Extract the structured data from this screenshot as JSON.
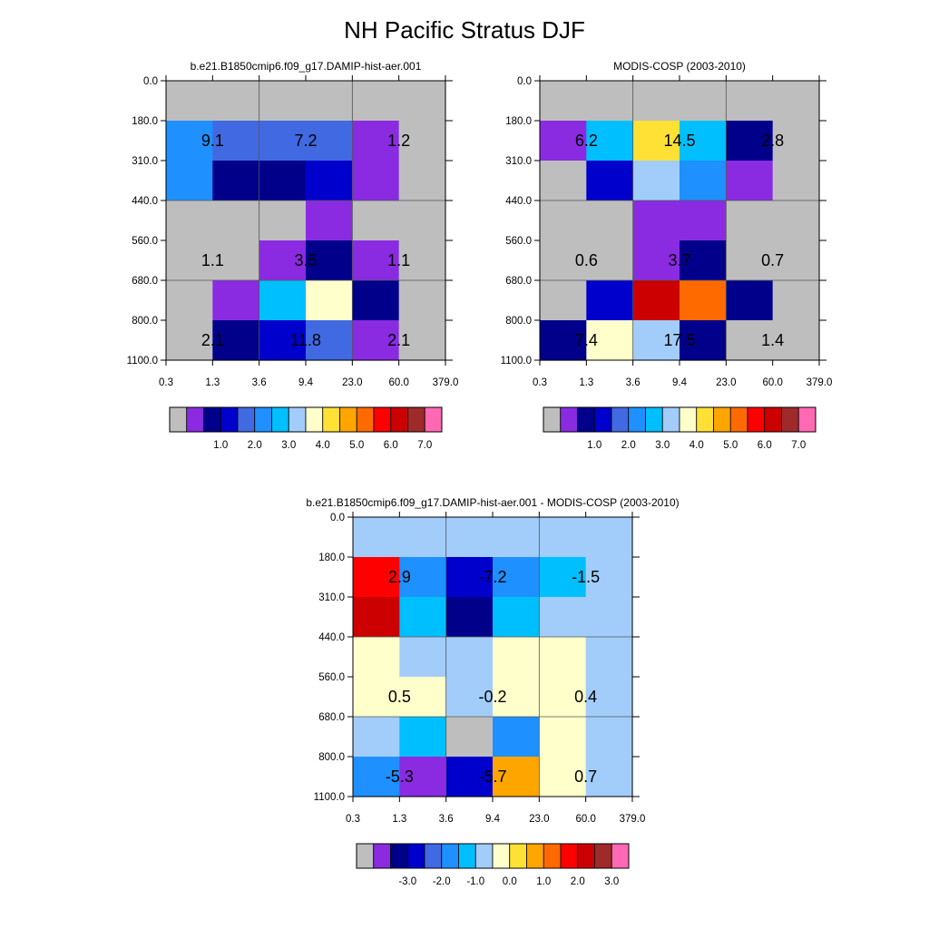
{
  "title": "NH Pacific Stratus DJF",
  "palettes": {
    "abs": [
      "#bebebe",
      "#8a2be2",
      "#00008b",
      "#0000cd",
      "#4169e1",
      "#1e90ff",
      "#00bfff",
      "#a2cdfa",
      "#ffffcc",
      "#ffe135",
      "#ffa500",
      "#ff6a00",
      "#ff0000",
      "#cc0000",
      "#9e2a2a",
      "#ff69b4"
    ],
    "diff": [
      "#bebebe",
      "#8a2be2",
      "#00008b",
      "#0000cd",
      "#4169e1",
      "#1e90ff",
      "#00bfff",
      "#a2cdfa",
      "#ffffcc",
      "#ffe135",
      "#ffa500",
      "#ff6a00",
      "#ff0000",
      "#cc0000",
      "#9e2a2a",
      "#ff69b4"
    ]
  },
  "chart_data": [
    {
      "type": "heatmap",
      "title": "b.e21.B1850cmip6.f09_g17.DAMIP-hist-aer.001",
      "x_ticks": [
        "0.3",
        "1.3",
        "3.6",
        "9.4",
        "23.0",
        "60.0",
        "379.0"
      ],
      "y_ticks": [
        "0.0",
        "180.0",
        "310.0",
        "440.0",
        "560.0",
        "680.0",
        "800.0",
        "1100.0"
      ],
      "palette": "abs",
      "cells": [
        [
          "#bebebe",
          "#bebebe",
          "#bebebe",
          "#bebebe",
          "#bebebe",
          "#bebebe"
        ],
        [
          "#1e90ff",
          "#4169e1",
          "#4169e1",
          "#4169e1",
          "#8a2be2",
          "#bebebe"
        ],
        [
          "#1e90ff",
          "#00008b",
          "#00008b",
          "#0000cd",
          "#8a2be2",
          "#bebebe"
        ],
        [
          "#bebebe",
          "#bebebe",
          "#bebebe",
          "#8a2be2",
          "#bebebe",
          "#bebebe"
        ],
        [
          "#bebebe",
          "#bebebe",
          "#8a2be2",
          "#00008b",
          "#8a2be2",
          "#bebebe"
        ],
        [
          "#bebebe",
          "#8a2be2",
          "#00bfff",
          "#ffffcc",
          "#00008b",
          "#bebebe"
        ],
        [
          "#bebebe",
          "#00008b",
          "#0000cd",
          "#4169e1",
          "#8a2be2",
          "#bebebe"
        ]
      ],
      "annotations": [
        {
          "text": "9.1",
          "col": 1,
          "row": 1
        },
        {
          "text": "7.2",
          "col": 3,
          "row": 1
        },
        {
          "text": "1.2",
          "col": 5,
          "row": 1
        },
        {
          "text": "1.1",
          "col": 1,
          "row": 4
        },
        {
          "text": "3.5",
          "col": 3,
          "row": 4
        },
        {
          "text": "1.1",
          "col": 5,
          "row": 4
        },
        {
          "text": "2.1",
          "col": 1,
          "row": 6
        },
        {
          "text": "11.8",
          "col": 3,
          "row": 6
        },
        {
          "text": "2.1",
          "col": 5,
          "row": 6
        }
      ],
      "colorbar_labels": [
        "1.0",
        "2.0",
        "3.0",
        "4.0",
        "5.0",
        "6.0",
        "7.0"
      ]
    },
    {
      "type": "heatmap",
      "title": "MODIS-COSP (2003-2010)",
      "x_ticks": [
        "0.3",
        "1.3",
        "3.6",
        "9.4",
        "23.0",
        "60.0",
        "379.0"
      ],
      "y_ticks": [
        "0.0",
        "180.0",
        "310.0",
        "440.0",
        "560.0",
        "680.0",
        "800.0",
        "1100.0"
      ],
      "palette": "abs",
      "cells": [
        [
          "#bebebe",
          "#bebebe",
          "#bebebe",
          "#bebebe",
          "#bebebe",
          "#bebebe"
        ],
        [
          "#8a2be2",
          "#00bfff",
          "#ffe135",
          "#00bfff",
          "#00008b",
          "#bebebe"
        ],
        [
          "#bebebe",
          "#0000cd",
          "#a2cdfa",
          "#1e90ff",
          "#8a2be2",
          "#bebebe"
        ],
        [
          "#bebebe",
          "#bebebe",
          "#8a2be2",
          "#8a2be2",
          "#bebebe",
          "#bebebe"
        ],
        [
          "#bebebe",
          "#bebebe",
          "#8a2be2",
          "#00008b",
          "#bebebe",
          "#bebebe"
        ],
        [
          "#bebebe",
          "#0000cd",
          "#cc0000",
          "#ff6a00",
          "#00008b",
          "#bebebe"
        ],
        [
          "#00008b",
          "#ffffcc",
          "#a2cdfa",
          "#00008b",
          "#bebebe",
          "#bebebe"
        ]
      ],
      "annotations": [
        {
          "text": "6.2",
          "col": 1,
          "row": 1
        },
        {
          "text": "14.5",
          "col": 3,
          "row": 1
        },
        {
          "text": "2.8",
          "col": 5,
          "row": 1
        },
        {
          "text": "0.6",
          "col": 1,
          "row": 4
        },
        {
          "text": "3.7",
          "col": 3,
          "row": 4
        },
        {
          "text": "0.7",
          "col": 5,
          "row": 4
        },
        {
          "text": "7.4",
          "col": 1,
          "row": 6
        },
        {
          "text": "17.5",
          "col": 3,
          "row": 6
        },
        {
          "text": "1.4",
          "col": 5,
          "row": 6
        }
      ],
      "colorbar_labels": [
        "1.0",
        "2.0",
        "3.0",
        "4.0",
        "5.0",
        "6.0",
        "7.0"
      ]
    },
    {
      "type": "heatmap",
      "title": "b.e21.B1850cmip6.f09_g17.DAMIP-hist-aer.001 - MODIS-COSP (2003-2010)",
      "x_ticks": [
        "0.3",
        "1.3",
        "3.6",
        "9.4",
        "23.0",
        "60.0",
        "379.0"
      ],
      "y_ticks": [
        "0.0",
        "180.0",
        "310.0",
        "440.0",
        "560.0",
        "680.0",
        "800.0",
        "1100.0"
      ],
      "palette": "diff",
      "cells": [
        [
          "#a2cdfa",
          "#a2cdfa",
          "#a2cdfa",
          "#a2cdfa",
          "#a2cdfa",
          "#a2cdfa"
        ],
        [
          "#ff0000",
          "#1e90ff",
          "#0000cd",
          "#1e90ff",
          "#00bfff",
          "#a2cdfa"
        ],
        [
          "#cc0000",
          "#00bfff",
          "#00008b",
          "#00bfff",
          "#a2cdfa",
          "#a2cdfa"
        ],
        [
          "#ffffcc",
          "#a2cdfa",
          "#a2cdfa",
          "#ffffcc",
          "#ffffcc",
          "#a2cdfa"
        ],
        [
          "#ffffcc",
          "#ffffcc",
          "#a2cdfa",
          "#ffffcc",
          "#ffffcc",
          "#a2cdfa"
        ],
        [
          "#a2cdfa",
          "#00bfff",
          "#bebebe",
          "#1e90ff",
          "#ffffcc",
          "#a2cdfa"
        ],
        [
          "#1e90ff",
          "#8a2be2",
          "#0000cd",
          "#ffa500",
          "#ffffcc",
          "#a2cdfa"
        ]
      ],
      "annotations": [
        {
          "text": "2.9",
          "col": 1,
          "row": 1
        },
        {
          "text": "-7.2",
          "col": 3,
          "row": 1
        },
        {
          "text": "-1.5",
          "col": 5,
          "row": 1
        },
        {
          "text": "0.5",
          "col": 1,
          "row": 4
        },
        {
          "text": "-0.2",
          "col": 3,
          "row": 4
        },
        {
          "text": "0.4",
          "col": 5,
          "row": 4
        },
        {
          "text": "-5.3",
          "col": 1,
          "row": 6
        },
        {
          "text": "-5.7",
          "col": 3,
          "row": 6
        },
        {
          "text": "0.7",
          "col": 5,
          "row": 6
        }
      ],
      "colorbar_labels": [
        "-3.0",
        "-2.0",
        "-1.0",
        "0.0",
        "1.0",
        "2.0",
        "3.0"
      ]
    }
  ]
}
